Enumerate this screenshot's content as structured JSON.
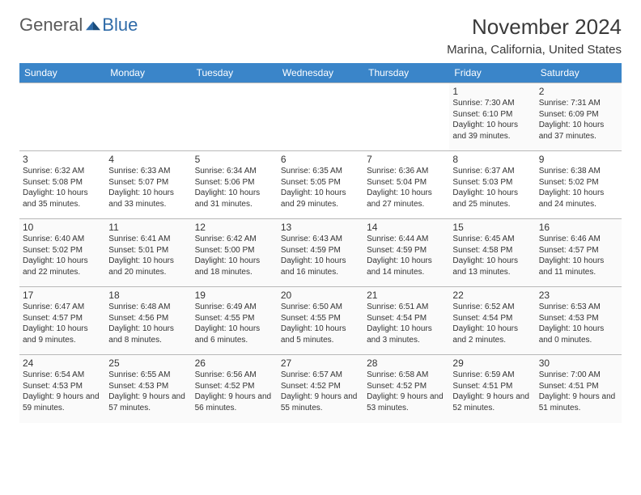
{
  "logo": {
    "general": "General",
    "blue": "Blue"
  },
  "title": "November 2024",
  "location": "Marina, California, United States",
  "header_row": [
    "Sunday",
    "Monday",
    "Tuesday",
    "Wednesday",
    "Thursday",
    "Friday",
    "Saturday"
  ],
  "colors": {
    "header_bg": "#3a85c9",
    "header_fg": "#ffffff",
    "logo_blue": "#2f6ba8",
    "text": "#333333",
    "row_border": "#b8b8b8"
  },
  "weeks": [
    [
      null,
      null,
      null,
      null,
      null,
      {
        "n": "1",
        "sr": "7:30 AM",
        "ss": "6:10 PM",
        "dl": "10 hours and 39 minutes."
      },
      {
        "n": "2",
        "sr": "7:31 AM",
        "ss": "6:09 PM",
        "dl": "10 hours and 37 minutes."
      }
    ],
    [
      {
        "n": "3",
        "sr": "6:32 AM",
        "ss": "5:08 PM",
        "dl": "10 hours and 35 minutes."
      },
      {
        "n": "4",
        "sr": "6:33 AM",
        "ss": "5:07 PM",
        "dl": "10 hours and 33 minutes."
      },
      {
        "n": "5",
        "sr": "6:34 AM",
        "ss": "5:06 PM",
        "dl": "10 hours and 31 minutes."
      },
      {
        "n": "6",
        "sr": "6:35 AM",
        "ss": "5:05 PM",
        "dl": "10 hours and 29 minutes."
      },
      {
        "n": "7",
        "sr": "6:36 AM",
        "ss": "5:04 PM",
        "dl": "10 hours and 27 minutes."
      },
      {
        "n": "8",
        "sr": "6:37 AM",
        "ss": "5:03 PM",
        "dl": "10 hours and 25 minutes."
      },
      {
        "n": "9",
        "sr": "6:38 AM",
        "ss": "5:02 PM",
        "dl": "10 hours and 24 minutes."
      }
    ],
    [
      {
        "n": "10",
        "sr": "6:40 AM",
        "ss": "5:02 PM",
        "dl": "10 hours and 22 minutes."
      },
      {
        "n": "11",
        "sr": "6:41 AM",
        "ss": "5:01 PM",
        "dl": "10 hours and 20 minutes."
      },
      {
        "n": "12",
        "sr": "6:42 AM",
        "ss": "5:00 PM",
        "dl": "10 hours and 18 minutes."
      },
      {
        "n": "13",
        "sr": "6:43 AM",
        "ss": "4:59 PM",
        "dl": "10 hours and 16 minutes."
      },
      {
        "n": "14",
        "sr": "6:44 AM",
        "ss": "4:59 PM",
        "dl": "10 hours and 14 minutes."
      },
      {
        "n": "15",
        "sr": "6:45 AM",
        "ss": "4:58 PM",
        "dl": "10 hours and 13 minutes."
      },
      {
        "n": "16",
        "sr": "6:46 AM",
        "ss": "4:57 PM",
        "dl": "10 hours and 11 minutes."
      }
    ],
    [
      {
        "n": "17",
        "sr": "6:47 AM",
        "ss": "4:57 PM",
        "dl": "10 hours and 9 minutes."
      },
      {
        "n": "18",
        "sr": "6:48 AM",
        "ss": "4:56 PM",
        "dl": "10 hours and 8 minutes."
      },
      {
        "n": "19",
        "sr": "6:49 AM",
        "ss": "4:55 PM",
        "dl": "10 hours and 6 minutes."
      },
      {
        "n": "20",
        "sr": "6:50 AM",
        "ss": "4:55 PM",
        "dl": "10 hours and 5 minutes."
      },
      {
        "n": "21",
        "sr": "6:51 AM",
        "ss": "4:54 PM",
        "dl": "10 hours and 3 minutes."
      },
      {
        "n": "22",
        "sr": "6:52 AM",
        "ss": "4:54 PM",
        "dl": "10 hours and 2 minutes."
      },
      {
        "n": "23",
        "sr": "6:53 AM",
        "ss": "4:53 PM",
        "dl": "10 hours and 0 minutes."
      }
    ],
    [
      {
        "n": "24",
        "sr": "6:54 AM",
        "ss": "4:53 PM",
        "dl": "9 hours and 59 minutes."
      },
      {
        "n": "25",
        "sr": "6:55 AM",
        "ss": "4:53 PM",
        "dl": "9 hours and 57 minutes."
      },
      {
        "n": "26",
        "sr": "6:56 AM",
        "ss": "4:52 PM",
        "dl": "9 hours and 56 minutes."
      },
      {
        "n": "27",
        "sr": "6:57 AM",
        "ss": "4:52 PM",
        "dl": "9 hours and 55 minutes."
      },
      {
        "n": "28",
        "sr": "6:58 AM",
        "ss": "4:52 PM",
        "dl": "9 hours and 53 minutes."
      },
      {
        "n": "29",
        "sr": "6:59 AM",
        "ss": "4:51 PM",
        "dl": "9 hours and 52 minutes."
      },
      {
        "n": "30",
        "sr": "7:00 AM",
        "ss": "4:51 PM",
        "dl": "9 hours and 51 minutes."
      }
    ]
  ],
  "labels": {
    "sunrise": "Sunrise: ",
    "sunset": "Sunset: ",
    "daylight": "Daylight: "
  }
}
